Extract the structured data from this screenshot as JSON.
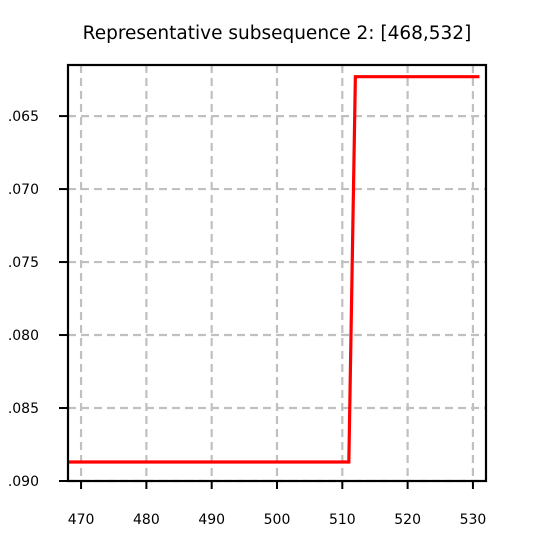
{
  "chart_data": {
    "type": "line",
    "title": "Representative subsequence 2: [468,532]",
    "xlabel": "",
    "ylabel": "",
    "xlim": [
      468,
      532
    ],
    "ylim": [
      -0.09,
      -0.0615
    ],
    "grid": true,
    "x_ticks": [
      470,
      480,
      490,
      500,
      510,
      520,
      530
    ],
    "x_tick_labels": [
      "470",
      "480",
      "490",
      "500",
      "510",
      "520",
      "530"
    ],
    "y_ticks": [
      -0.065,
      -0.07,
      -0.075,
      -0.08,
      -0.085,
      -0.09
    ],
    "y_tick_labels": [
      ".065",
      ".070",
      ".075",
      ".080",
      ".085",
      ".090"
    ],
    "series": [
      {
        "color": "#ff0000",
        "x": [
          468,
          469,
          470,
          471,
          472,
          473,
          474,
          475,
          476,
          477,
          478,
          479,
          480,
          481,
          482,
          483,
          484,
          485,
          486,
          487,
          488,
          489,
          490,
          491,
          492,
          493,
          494,
          495,
          496,
          497,
          498,
          499,
          500,
          501,
          502,
          503,
          504,
          505,
          506,
          507,
          508,
          509,
          510,
          511,
          512,
          513,
          514,
          515,
          516,
          517,
          518,
          519,
          520,
          521,
          522,
          523,
          524,
          525,
          526,
          527,
          528,
          529,
          530,
          531
        ],
        "y": [
          -0.0887,
          -0.0887,
          -0.0887,
          -0.0887,
          -0.0887,
          -0.0887,
          -0.0887,
          -0.0887,
          -0.0887,
          -0.0887,
          -0.0887,
          -0.0887,
          -0.0887,
          -0.0887,
          -0.0887,
          -0.0887,
          -0.0887,
          -0.0887,
          -0.0887,
          -0.0887,
          -0.0887,
          -0.0887,
          -0.0887,
          -0.0887,
          -0.0887,
          -0.0887,
          -0.0887,
          -0.0887,
          -0.0887,
          -0.0887,
          -0.0887,
          -0.0887,
          -0.0887,
          -0.0887,
          -0.0887,
          -0.0887,
          -0.0887,
          -0.0887,
          -0.0887,
          -0.0887,
          -0.0887,
          -0.0887,
          -0.0887,
          -0.0887,
          -0.0623,
          -0.0623,
          -0.0623,
          -0.0623,
          -0.0623,
          -0.0623,
          -0.0623,
          -0.0623,
          -0.0623,
          -0.0623,
          -0.0623,
          -0.0623,
          -0.0623,
          -0.0623,
          -0.0623,
          -0.0623,
          -0.0623,
          -0.0623,
          -0.0623,
          -0.0623
        ]
      }
    ]
  }
}
